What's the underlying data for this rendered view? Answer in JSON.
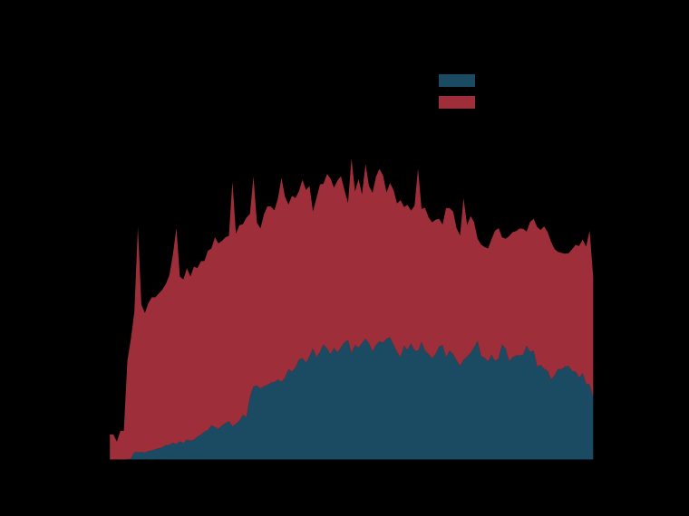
{
  "chart_data": {
    "type": "area",
    "stacked": true,
    "title": "",
    "xlabel": "",
    "ylabel": "",
    "x": [
      0,
      1,
      2,
      3,
      4,
      5,
      6,
      7,
      8,
      9,
      10,
      11,
      12,
      13,
      14,
      15,
      16,
      17,
      18,
      19,
      20,
      21,
      22,
      23,
      24,
      25,
      26,
      27,
      28,
      29,
      30,
      31,
      32,
      33,
      34,
      35,
      36,
      37,
      38,
      39,
      40,
      41,
      42,
      43,
      44,
      45,
      46,
      47,
      48,
      49,
      50,
      51,
      52,
      53,
      54,
      55,
      56,
      57,
      58,
      59,
      60,
      61,
      62,
      63,
      64,
      65,
      66,
      67,
      68,
      69,
      70,
      71,
      72,
      73,
      74,
      75,
      76,
      77,
      78,
      79,
      80,
      81,
      82,
      83,
      84,
      85,
      86,
      87,
      88,
      89,
      90,
      91,
      92,
      93,
      94,
      95,
      96,
      97,
      98,
      99,
      100,
      101,
      102,
      103,
      104,
      105,
      106,
      107,
      108,
      109,
      110,
      111,
      112,
      113,
      114,
      115,
      116,
      117,
      118,
      119,
      120,
      121,
      122,
      123,
      124,
      125,
      126,
      127,
      128,
      129,
      130,
      131,
      132,
      133,
      134,
      135,
      136,
      137,
      138
    ],
    "xlim": [
      -6,
      140
    ],
    "ylim": [
      0,
      11
    ],
    "series": [
      {
        "name": "",
        "color": "#1b4a63",
        "values": [
          0.0,
          0.0,
          0.0,
          0.0,
          0.0,
          0.02,
          0.04,
          0.21,
          0.21,
          0.22,
          0.2,
          0.24,
          0.26,
          0.29,
          0.32,
          0.34,
          0.41,
          0.41,
          0.47,
          0.43,
          0.51,
          0.46,
          0.56,
          0.53,
          0.55,
          0.64,
          0.69,
          0.78,
          0.82,
          0.95,
          0.9,
          0.85,
          0.94,
          1.01,
          1.06,
          0.92,
          0.99,
          1.08,
          1.24,
          1.17,
          1.73,
          2.02,
          2.04,
          1.96,
          2.02,
          2.06,
          2.12,
          2.14,
          2.21,
          2.14,
          2.26,
          2.49,
          2.42,
          2.54,
          2.75,
          2.8,
          2.67,
          2.85,
          3.06,
          2.82,
          2.97,
          3.17,
          3.06,
          2.9,
          3.08,
          2.95,
          3.09,
          3.23,
          3.29,
          2.93,
          3.16,
          3.08,
          3.21,
          3.33,
          3.2,
          2.98,
          3.16,
          3.26,
          3.22,
          3.33,
          3.37,
          3.16,
          2.97,
          2.82,
          3.14,
          3.02,
          3.2,
          3.01,
          2.99,
          3.24,
          3.0,
          2.91,
          2.79,
          2.91,
          3.11,
          3.15,
          2.82,
          3.0,
          2.91,
          2.73,
          2.58,
          2.75,
          2.84,
          2.94,
          3.09,
          3.27,
          2.85,
          2.81,
          2.7,
          2.89,
          2.72,
          2.79,
          3.17,
          3.06,
          2.71,
          2.82,
          2.87,
          2.87,
          2.89,
          3.14,
          2.97,
          3.0,
          2.56,
          2.61,
          2.5,
          2.45,
          2.21,
          2.32,
          2.5,
          2.49,
          2.57,
          2.58,
          2.44,
          2.42,
          2.26,
          2.38,
          2.09,
          2.07,
          1.72
        ]
      },
      {
        "name": "",
        "color": "#9e2f3a",
        "values": [
          0.7,
          0.7,
          0.5,
          0.8,
          0.8,
          2.7,
          3.29,
          3.86,
          6.2,
          4.05,
          3.84,
          4.07,
          4.21,
          4.18,
          4.26,
          4.34,
          4.43,
          4.66,
          5.17,
          5.95,
          4.53,
          4.5,
          4.71,
          4.51,
          4.76,
          4.63,
          4.77,
          4.69,
          4.93,
          4.86,
          5.22,
          5.1,
          5.08,
          5.11,
          5.1,
          6.74,
          5.23,
          5.37,
          5.24,
          5.49,
          5.03,
          5.77,
          4.48,
          4.4,
          4.73,
          4.91,
          4.84,
          4.72,
          4.98,
          5.61,
          4.98,
          4.53,
          4.84,
          4.66,
          4.64,
          4.9,
          4.75,
          4.68,
          3.77,
          4.38,
          4.6,
          4.42,
          4.8,
          4.84,
          4.4,
          4.73,
          4.71,
          4.18,
          3.77,
          5.36,
          4.22,
          4.64,
          4.09,
          4.8,
          4.33,
          4.36,
          4.63,
          4.74,
          4.6,
          4.02,
          4.24,
          4.26,
          4.08,
          4.32,
          3.81,
          3.99,
          3.65,
          3.98,
          5.02,
          3.66,
          3.93,
          3.76,
          3.74,
          3.69,
          3.52,
          3.32,
          4.1,
          3.92,
          3.92,
          3.64,
          3.59,
          4.45,
          3.61,
          3.76,
          3.45,
          2.81,
          3.07,
          3.04,
          3.11,
          3.18,
          3.58,
          3.58,
          2.95,
          3.02,
          3.44,
          3.44,
          3.42,
          3.49,
          3.46,
          3.14,
          3.57,
          3.63,
          3.84,
          3.71,
          3.92,
          3.81,
          3.78,
          3.47,
          3.22,
          3.2,
          3.1,
          3.1,
          3.35,
          3.49,
          3.62,
          3.68,
          3.77,
          4.23,
          3.31
        ]
      }
    ],
    "ytick_values": [
      0,
      2,
      4,
      6,
      8,
      10
    ],
    "xtick_values": [
      0,
      30,
      60,
      90,
      120,
      136
    ],
    "ytick_labels": [
      "",
      "",
      "",
      "",
      "",
      ""
    ],
    "xtick_labels": [
      "",
      "",
      "",
      "",
      "",
      ""
    ],
    "legend_position": "top-right",
    "grid": false
  }
}
